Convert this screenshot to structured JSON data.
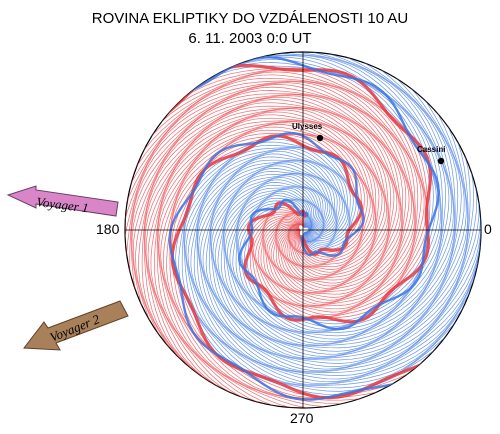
{
  "title": "ROVINA EKLIPTIKY DO VZDÁLENOSTI 10 AU",
  "subtitle": "6. 11. 2003 0:0 UT",
  "angle_labels": {
    "zero": "0",
    "one_eighty": "180",
    "two_seventy": "270"
  },
  "spacecraft": [
    {
      "name": "Ulysses",
      "kind": "dot"
    },
    {
      "name": "Cassini",
      "kind": "dot"
    },
    {
      "name": "Voyager 1",
      "kind": "arrow",
      "color": "#d986c8"
    },
    {
      "name": "Voyager 2",
      "kind": "arrow",
      "color": "#a8805a"
    }
  ],
  "colors": {
    "red_spiral": "#e8383f",
    "blue_spiral": "#3a74e0",
    "axes": "#000000",
    "disk": "#ffffff"
  }
}
